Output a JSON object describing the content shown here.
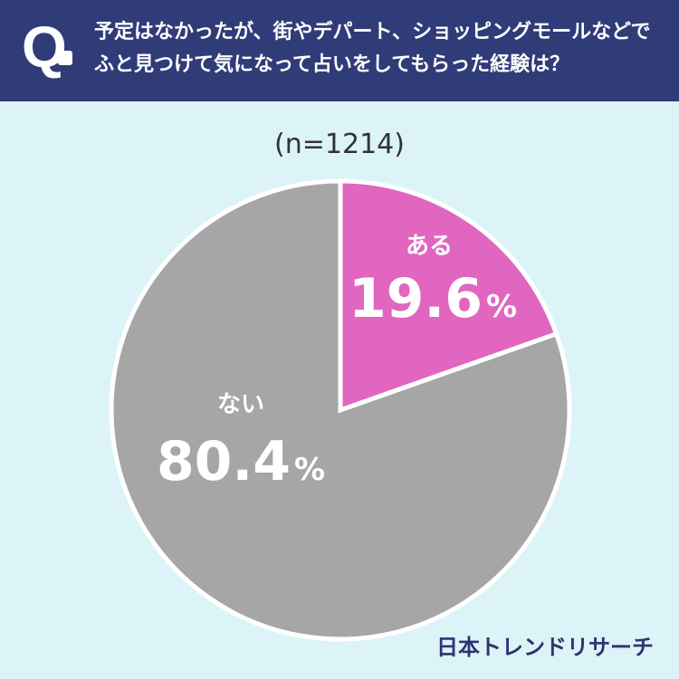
{
  "header": {
    "q_mark": "Q",
    "question": "予定はなかったが、街やデパート、ショッピングモールなどでふと見つけて気になって占いをしてもらった経験は？"
  },
  "sample_size": "(n=1214)",
  "brand": "日本トレンドリサーチ",
  "chart_data": {
    "type": "pie",
    "title": "",
    "slices": [
      {
        "label": "ある",
        "value": 19.6,
        "value_label": "19.6",
        "unit": "%",
        "color": "#e066bf"
      },
      {
        "label": "ない",
        "value": 80.4,
        "value_label": "80.4",
        "unit": "%",
        "color": "#a6a6a6"
      }
    ],
    "start_angle": "12 o'clock",
    "direction": "clockwise",
    "slice_border_color": "#ffffff"
  }
}
